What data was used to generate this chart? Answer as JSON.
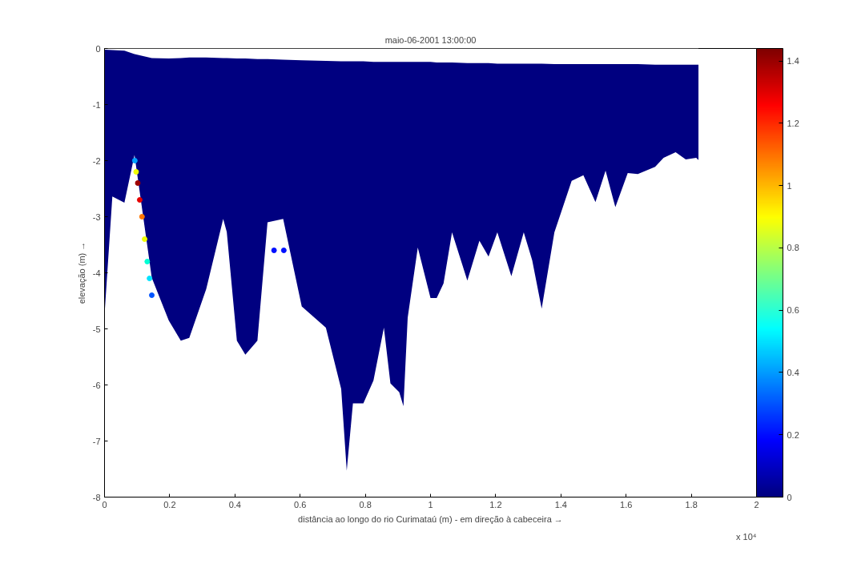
{
  "chart_data": {
    "type": "area",
    "stacked": true,
    "title": "maio-06-2001 13:00:00",
    "xlabel": "distância ao longo do rio Curimataú (m) - em direção à cabeceira →",
    "ylabel": "elevação (m) →",
    "annotations": [
      "x 10⁴"
    ],
    "xlim": [
      0,
      2
    ],
    "xticks": [
      0,
      0.2,
      0.4,
      0.6,
      0.8,
      1,
      1.2,
      1.4,
      1.6,
      1.8,
      2
    ],
    "ylim": [
      -8,
      0
    ],
    "yticks": [
      -8,
      -7,
      -6,
      -5,
      -4,
      -3,
      -2,
      -1,
      0
    ],
    "clim": [
      0,
      1.44
    ],
    "cticks": [
      0,
      0.2,
      0.4,
      0.6,
      0.8,
      1,
      1.2,
      1.4
    ],
    "grid": false,
    "series": [
      {
        "color": "#ffffff",
        "x": [
          0,
          0.024,
          0.061,
          0.092,
          0.145,
          0.197,
          0.234,
          0.26,
          0.312,
          0.364,
          0.375,
          0.406,
          0.432,
          0.469,
          0.5,
          0.548,
          0.605,
          0.679,
          0.726,
          0.743,
          0.762,
          0.794,
          0.825,
          0.857,
          0.877,
          0.904,
          0.917,
          0.93,
          0.961,
          1.0,
          1.019,
          1.04,
          1.066,
          1.113,
          1.15,
          1.178,
          1.205,
          1.248,
          1.286,
          1.312,
          1.341,
          1.38,
          1.433,
          1.469,
          1.506,
          1.537,
          1.567,
          1.605,
          1.636,
          1.689,
          1.715,
          1.752,
          1.783,
          1.815,
          1.822
        ],
        "values": [
          -0.02,
          -0.03,
          -0.04,
          -0.1,
          -0.17,
          -0.18,
          -0.17,
          -0.16,
          -0.16,
          -0.17,
          -0.17,
          -0.18,
          -0.18,
          -0.19,
          -0.19,
          -0.2,
          -0.21,
          -0.22,
          -0.23,
          -0.23,
          -0.23,
          -0.23,
          -0.24,
          -0.24,
          -0.24,
          -0.24,
          -0.24,
          -0.24,
          -0.24,
          -0.24,
          -0.25,
          -0.25,
          -0.25,
          -0.26,
          -0.26,
          -0.26,
          -0.27,
          -0.27,
          -0.27,
          -0.27,
          -0.27,
          -0.28,
          -0.28,
          -0.28,
          -0.28,
          -0.28,
          -0.28,
          -0.28,
          -0.28,
          -0.29,
          -0.29,
          -0.29,
          -0.29,
          -0.29,
          -0.29
        ]
      },
      {
        "color": "#000080",
        "x": [
          0,
          0.024,
          0.061,
          0.092,
          0.145,
          0.197,
          0.234,
          0.26,
          0.312,
          0.364,
          0.375,
          0.406,
          0.432,
          0.469,
          0.5,
          0.548,
          0.605,
          0.679,
          0.726,
          0.743,
          0.762,
          0.794,
          0.825,
          0.857,
          0.877,
          0.904,
          0.917,
          0.93,
          0.961,
          1.0,
          1.019,
          1.04,
          1.066,
          1.113,
          1.15,
          1.178,
          1.205,
          1.248,
          1.286,
          1.312,
          1.341,
          1.38,
          1.433,
          1.469,
          1.506,
          1.537,
          1.567,
          1.605,
          1.636,
          1.689,
          1.715,
          1.752,
          1.783,
          1.815,
          1.822
        ],
        "values": [
          -4.73,
          -2.61,
          -2.71,
          -1.8,
          -3.92,
          -4.67,
          -5.04,
          -5.0,
          -4.13,
          -2.87,
          -3.1,
          -5.03,
          -5.28,
          -5.02,
          -2.91,
          -2.84,
          -4.39,
          -4.76,
          -5.84,
          -7.3,
          -6.1,
          -6.1,
          -5.68,
          -4.74,
          -5.73,
          -5.89,
          -6.14,
          -4.56,
          -3.31,
          -4.21,
          -4.2,
          -3.94,
          -3.03,
          -3.88,
          -3.17,
          -3.45,
          -3.01,
          -3.79,
          -3.01,
          -3.51,
          -4.37,
          -3.0,
          -2.08,
          -1.98,
          -2.46,
          -1.9,
          -2.55,
          -1.94,
          -1.96,
          -1.82,
          -1.66,
          -1.56,
          -1.69,
          -1.66,
          -1.7
        ]
      },
      {
        "type": "scatter",
        "marker": "circle",
        "x": [
          0.093,
          0.097,
          0.102,
          0.108,
          0.115,
          0.123,
          0.131,
          0.138,
          0.145,
          0.52,
          0.55
        ],
        "values": [
          -2.0,
          -2.2,
          -2.4,
          -2.7,
          -3.0,
          -3.4,
          -3.8,
          -4.1,
          -4.4,
          -3.6,
          -3.6
        ],
        "colors": [
          "#00a0ff",
          "#f0ff00",
          "#9e0000",
          "#e60000",
          "#ff7600",
          "#f0ff00",
          "#00ffd4",
          "#00e3ff",
          "#0054ff",
          "#0010ff",
          "#0010ff"
        ]
      }
    ]
  }
}
